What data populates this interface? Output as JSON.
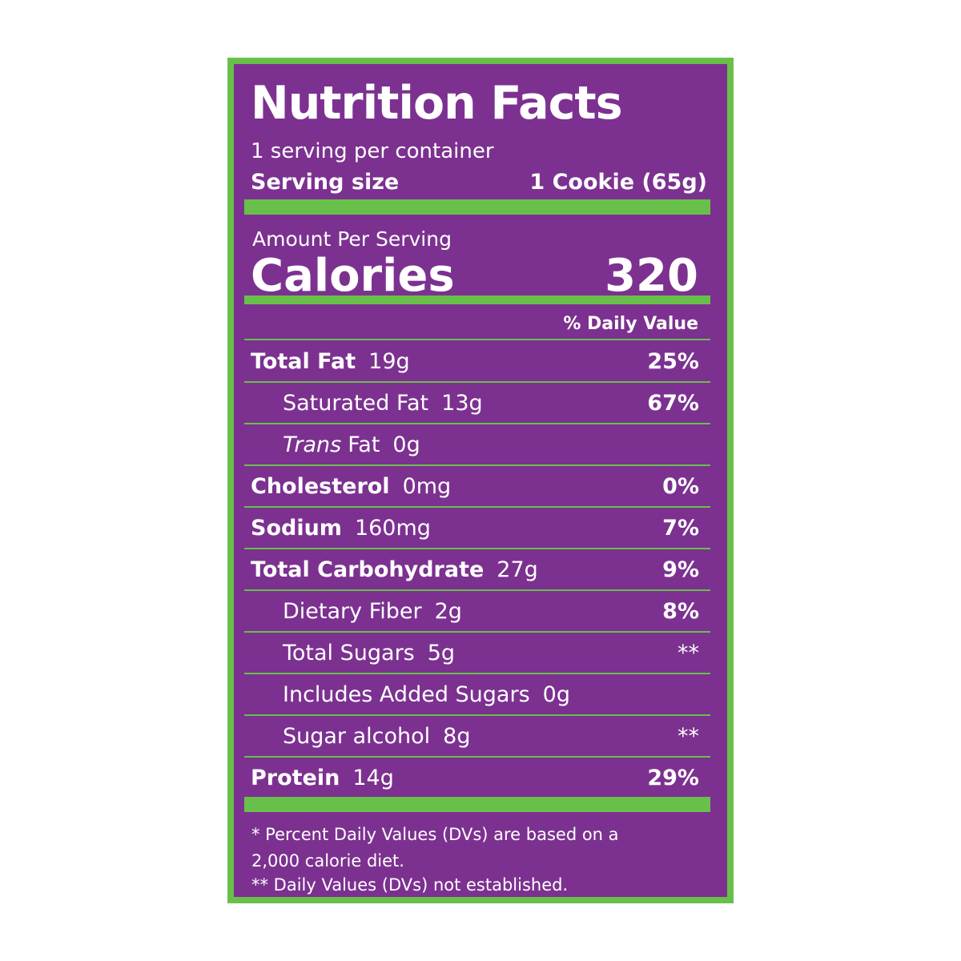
{
  "header": {
    "title": "Nutrition Facts",
    "servings": "1 serving per container",
    "serving_size_label": "Serving size",
    "serving_size_value": "1 Cookie (65g)"
  },
  "calories": {
    "label": "Amount Per Serving",
    "name": "Calories",
    "value": "320"
  },
  "dv_header": "% Daily Value",
  "rows": [
    {
      "name": "Total Fat",
      "amount": "19g",
      "dv": "25%"
    },
    {
      "name": "Saturated Fat",
      "amount": "13g",
      "dv": "67%"
    },
    {
      "name_italic": "Trans",
      "name": "Fat",
      "amount": "0g"
    },
    {
      "name": "Cholesterol",
      "amount": "0mg",
      "dv": "0%"
    },
    {
      "name": "Sodium",
      "amount": "160mg",
      "dv": "7%"
    },
    {
      "name": "Total Carbohydrate",
      "amount": "27g",
      "dv": "9%"
    },
    {
      "name": "Dietary Fiber",
      "amount": "2g",
      "dv": "8%"
    },
    {
      "name": "Total Sugars",
      "amount": "5g",
      "dv": "**"
    },
    {
      "name": "Includes Added Sugars",
      "amount": "0g"
    },
    {
      "name": "Sugar alcohol",
      "amount": "8g",
      "dv": "**"
    },
    {
      "name": "Protein",
      "amount": "14g",
      "dv": "29%"
    }
  ],
  "footnotes": [
    "* Percent Daily Values (DVs) are based on a",
    "2,000 calorie diet.",
    "** Daily Values (DVs) not established."
  ]
}
